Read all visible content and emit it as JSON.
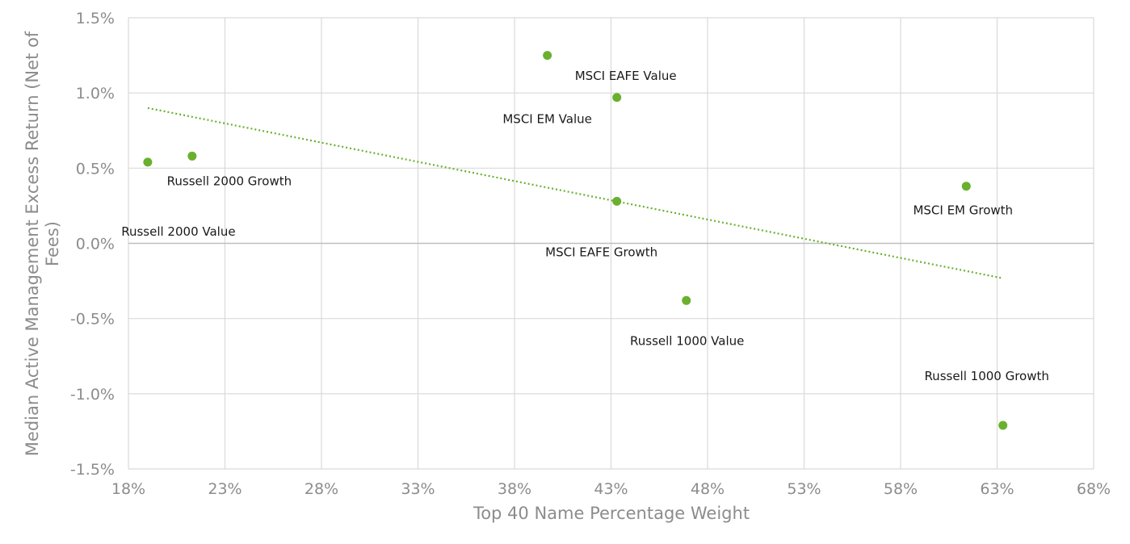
{
  "chart_data": {
    "type": "scatter",
    "xlabel": "Top 40 Name Percentage Weight",
    "ylabel_lines": [
      "Median Active Management Excess Return (Net of",
      "Fees)"
    ],
    "xlim": [
      18,
      68
    ],
    "ylim": [
      -1.5,
      1.5
    ],
    "x_ticks": [
      18,
      23,
      28,
      33,
      38,
      43,
      48,
      53,
      58,
      63,
      68
    ],
    "x_tick_labels": [
      "18%",
      "23%",
      "28%",
      "33%",
      "38%",
      "43%",
      "48%",
      "53%",
      "58%",
      "63%",
      "68%"
    ],
    "y_ticks": [
      1.5,
      1.0,
      0.5,
      0.0,
      -0.5,
      -1.0,
      -1.5
    ],
    "y_tick_labels": [
      "1.5%",
      "1.0%",
      "0.5%",
      "0.0%",
      "-0.5%",
      "-1.0%",
      "-1.5%"
    ],
    "grid": true,
    "points": [
      {
        "label": "Russell 2000 Value",
        "x": 19.0,
        "y": 0.54
      },
      {
        "label": "Russell 2000 Growth",
        "x": 21.3,
        "y": 0.58
      },
      {
        "label": "MSCI EM Value",
        "x": 39.7,
        "y": 1.25
      },
      {
        "label": "MSCI EAFE Value",
        "x": 43.3,
        "y": 0.97
      },
      {
        "label": "MSCI EAFE Growth",
        "x": 43.3,
        "y": 0.28
      },
      {
        "label": "Russell 1000 Value",
        "x": 46.9,
        "y": -0.38
      },
      {
        "label": "MSCI EM Growth",
        "x": 61.4,
        "y": 0.38
      },
      {
        "label": "Russell 1000 Growth",
        "x": 63.3,
        "y": -1.21
      }
    ],
    "trendline": {
      "style": "dotted",
      "x": [
        19.0,
        63.2
      ],
      "y": [
        0.9,
        -0.23
      ]
    },
    "colors": {
      "points": "#6ab02e",
      "trendline": "#6ab02e",
      "grid": "#d9d9d9",
      "zero_line": "#bfbfbf",
      "axis_text": "#8c8c8c"
    }
  }
}
